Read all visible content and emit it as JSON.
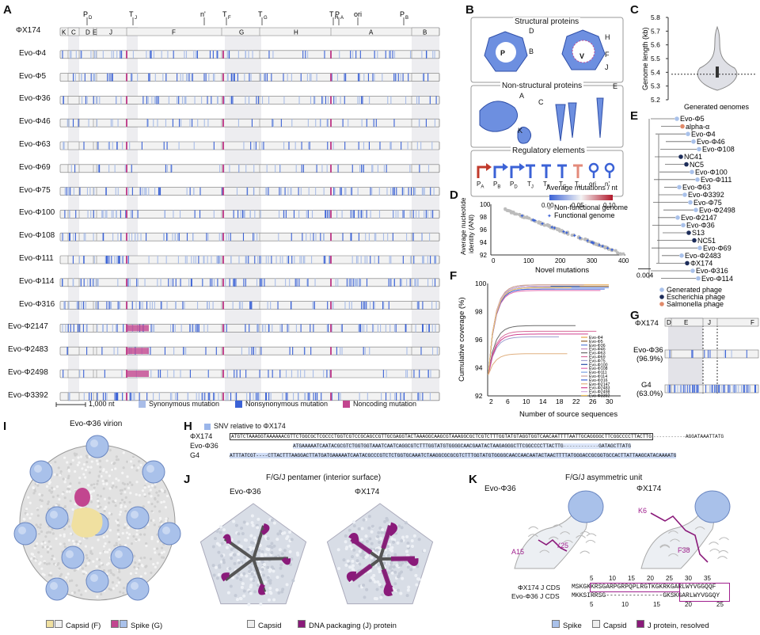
{
  "panels": {
    "a": "A",
    "b": "B",
    "c": "C",
    "d": "D",
    "e": "E",
    "f": "F",
    "g": "G",
    "h": "H",
    "i": "I",
    "j": "J",
    "k": "K"
  },
  "panel_a": {
    "ref_label": "ΦX174",
    "genes": [
      "K",
      "C",
      "D",
      "E",
      "J",
      "F",
      "G",
      "H",
      "A",
      "B"
    ],
    "top_markers": [
      "P",
      "D",
      "T",
      "J",
      "n'",
      "T",
      "F",
      "T",
      "G",
      "T",
      "H",
      "P",
      "A",
      "ori",
      "P",
      "B"
    ],
    "marker_main": [
      "P",
      "T",
      "n'",
      "T",
      "T",
      "T",
      "P",
      "ori",
      "P"
    ],
    "marker_sub": [
      "D",
      "J",
      "",
      "F",
      "G",
      "H",
      "A",
      "",
      "B"
    ],
    "rows": [
      "Evo-Φ4",
      "Evo-Φ5",
      "Evo-Φ36",
      "Evo-Φ46",
      "Evo-Φ63",
      "Evo-Φ69",
      "Evo-Φ75",
      "Evo-Φ100",
      "Evo-Φ108",
      "Evo-Φ111",
      "Evo-Φ114",
      "Evo-Φ316",
      "Evo-Φ2147",
      "Evo-Φ2483",
      "Evo-Φ2498",
      "Evo-Φ3392"
    ],
    "scale": "1,000 nt",
    "legend": [
      "Synonymous mutation",
      "Nonsynonymous mutation",
      "Noncoding mutation"
    ],
    "colors": {
      "syn": "#a9bde8",
      "nonsyn": "#3b62d6",
      "noncoding": "#c2468f",
      "track": "#f2f2f2",
      "band": "#e3e3e8"
    }
  },
  "panel_b": {
    "structural": "Structural proteins",
    "nonstructural": "Non-structural proteins",
    "regulatory": "Regulatory elements",
    "struct_labels": [
      "D",
      "B",
      "P",
      "H",
      "F",
      "J",
      "V"
    ],
    "nonstruct_labels": [
      "A",
      "C",
      "E",
      "K"
    ],
    "reg_main": [
      "P",
      "P",
      "P",
      "T",
      "T",
      "T",
      "T",
      "ori",
      "n'"
    ],
    "reg_sub": [
      "A",
      "B",
      "D",
      "J",
      "F",
      "G",
      "H",
      "",
      ""
    ],
    "colorbar_title": "Average mutations / nt",
    "colorbar_ticks": [
      "0.00",
      "0.05",
      "0.10"
    ]
  },
  "panel_c": {
    "ylabel": "Genome length (kb)",
    "xlabel": "Generated genomes",
    "ticks": [
      "5.8",
      "5.7",
      "5.6",
      "5.5",
      "5.4",
      "5.3",
      "5.2"
    ],
    "reference": 5.386
  },
  "panel_d": {
    "ylabel": "Average nucleotide identity (ANI)",
    "xlabel": "Novel mutations",
    "legend": [
      "Non-functional genome",
      "Functional genome"
    ]
  },
  "panel_e": {
    "scale": "0.004",
    "tips": [
      "Evo-Φ5",
      "alpha-α",
      "Evo-Φ4",
      "Evo-Φ46",
      "Evo-Φ108",
      "NC41",
      "NC5",
      "Evo-Φ100",
      "Evo-Φ111",
      "Evo-Φ63",
      "Evo-Φ3392",
      "Evo-Φ75",
      "Evo-Φ2498",
      "Evo-Φ2147",
      "Evo-Φ36",
      "S13",
      "NC51",
      "Evo-Φ69",
      "Evo-Φ2483",
      "ΦX174",
      "Evo-Φ316",
      "Evo-Φ114"
    ],
    "legend": [
      "Generated phage",
      "Escherichia phage",
      "Salmonella phage"
    ]
  },
  "panel_f": {
    "ylabel": "Cumulative coverage (%)",
    "xlabel": "Number of source sequences",
    "legend": [
      "Evo-Φ4",
      "Evo-Φ5",
      "Evo-Φ36",
      "Evo-Φ46",
      "Evo-Φ63",
      "Evo-Φ69",
      "Evo-Φ75",
      "Evo-Φ100",
      "Evo-Φ108",
      "Evo-Φ111",
      "Evo-Φ114",
      "Evo-Φ316",
      "Evo-Φ2147",
      "Evo-Φ2483",
      "Evo-Φ2498",
      "Evo-Φ3392"
    ]
  },
  "panel_g": {
    "rows": [
      "ΦX174",
      "Evo-Φ36",
      "(96.9%)",
      "G4",
      "(63.0%)"
    ],
    "genes": [
      "D",
      "E",
      "J",
      "F"
    ]
  },
  "panel_h": {
    "legend": "SNV relative to ΦX174",
    "labels": [
      "ΦX174",
      "Evo-Φ36",
      "G4"
    ],
    "seq1": "ATGTCTAAAGGTAAAAAACGTTCTGGCGCTCGCCCTGGTCGTCCGCAGCCGTTGCGAGGTACTAAAGGCAAGCGTAAAGGCGCTCGTCTTTGGTATGTAGGTGGTCAACAATTTTAATTGCAGGGGCTTCGGCCCCTTACTTG",
    "seq1_tail": "AGGATAAATTATG",
    "seq2": "ATGAAAAATCAATACGCGTCTGGTGGTAAATCAATCAGGCGTCTTTGGTATGTGGGGCAACGAATACTAAGAGGGCTTCGGCCCCTTACTTG",
    "seq2_tail": "GATAGCTTATG",
    "seq3": "ATTTATCGT----CTTACTTTAAGGACTTATGATGAAAAATCAATACGCCCGTCTCTGGTGCAAATCTAAGGCGCGCGTCTTTGGTATGTGGGGCAACCAACAATACTAACTTTTATGGGACCGCGGTGCCACTTATTAAGCATACAAAATG",
    "seq3_tail": ""
  },
  "panel_i": {
    "title": "Evo-Φ36 virion",
    "legend": [
      "Capsid (F)",
      "Spike (G)"
    ]
  },
  "panel_j": {
    "title": "F/G/J pentamer (interior surface)",
    "left": "Evo-Φ36",
    "right": "ΦX174",
    "legend": [
      "Capsid",
      "DNA packaging (J) protein"
    ]
  },
  "panel_k": {
    "title": "F/G/J asymmetric unit",
    "left": "Evo-Φ36",
    "right": "ΦX174",
    "res_left": [
      "A15",
      "Y25"
    ],
    "res_right": [
      "K6",
      "F38"
    ],
    "cds1_label": "ΦX174 J CDS",
    "cds2_label": "Evo-Φ36 J CDS",
    "cds1": "MSKGKKRSGARPGRPQPLRGTKGKRKGARLWYVGGQQF",
    "cds2": "MKKSIRRSG---------------GKSKGARLWYVGGQY",
    "top_ticks": [
      "5",
      "10",
      "15",
      "20",
      "25",
      "30",
      "35"
    ],
    "bottom_ticks": [
      "5",
      "10",
      "15",
      "20",
      "25"
    ],
    "legend": [
      "Spike",
      "Capsid",
      "J protein, resolved"
    ]
  }
}
